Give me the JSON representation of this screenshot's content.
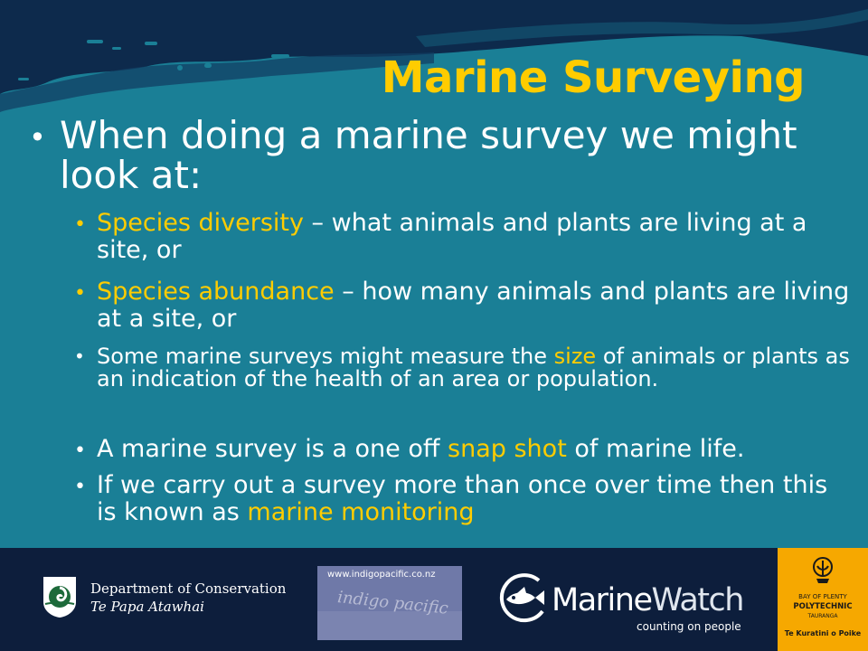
{
  "slide": {
    "title": "Marine Surveying",
    "bullets": [
      {
        "segments": [
          {
            "text": "When doing a marine survey we might look at:",
            "highlight": false
          }
        ]
      },
      {
        "segments": [
          {
            "text": "Species diversity",
            "highlight": true
          },
          {
            "text": " – what animals and plants are living at a site, or",
            "highlight": false
          }
        ]
      },
      {
        "segments": [
          {
            "text": "Species abundance",
            "highlight": true
          },
          {
            "text": " – how many animals and plants are living at a site, or",
            "highlight": false
          }
        ]
      },
      {
        "segments": [
          {
            "text": "Some marine surveys might measure the ",
            "highlight": false
          },
          {
            "text": "size",
            "highlight": true
          },
          {
            "text": " of animals or plants as an indication of the health of an area or population.",
            "highlight": false
          }
        ]
      },
      {
        "segments": [
          {
            "text": "A marine survey is a one off ",
            "highlight": false
          },
          {
            "text": "snap shot",
            "highlight": true
          },
          {
            "text": " of marine life.",
            "highlight": false
          }
        ]
      },
      {
        "segments": [
          {
            "text": "If we carry out a survey more than once over time then this is known as ",
            "highlight": false
          },
          {
            "text": "marine monitoring",
            "highlight": true
          }
        ]
      }
    ],
    "bullet_glyph": "•"
  },
  "footer": {
    "doc": {
      "name": "Department of Conservation",
      "maori": "Te Papa Atawhai",
      "icon": "doc-fern-emblem-icon"
    },
    "indigo": {
      "url": "www.indigopacific.co.nz",
      "sand_text": "indigo pacific"
    },
    "marinewatch": {
      "name_a": "Marine",
      "name_b": "Watch",
      "tagline": "counting on people",
      "icon": "fish-circle-icon"
    },
    "bop": {
      "line1": "BAY OF PLENTY",
      "line2": "POLYTECHNIC",
      "line3": "TAURANGA",
      "line4": "Te Kuratini o Poike",
      "icon": "bop-emblem-icon"
    }
  },
  "colors": {
    "background": "#1a7f96",
    "header": "#0d2a4c",
    "title": "#ffcc00",
    "highlight": "#ffcc00",
    "text": "#ffffff",
    "footer": "#0d1e3c",
    "bop_panel": "#f6a800"
  }
}
